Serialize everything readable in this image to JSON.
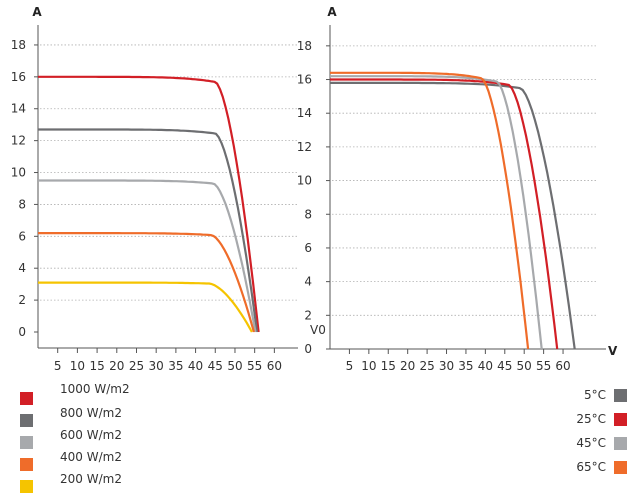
{
  "chart_data": [
    {
      "type": "line",
      "title": "",
      "xlabel": "",
      "ylabel": "A",
      "xlim": [
        0,
        66
      ],
      "ylim": [
        0,
        19
      ],
      "x_ticks": [
        "5",
        "10",
        "15",
        "20",
        "25",
        "30",
        "35",
        "40",
        "45",
        "50",
        "55",
        "60"
      ],
      "y_ticks": [
        "0",
        "2",
        "4",
        "6",
        "8",
        "10",
        "12",
        "14",
        "16",
        "18"
      ],
      "grid": "horizontal dotted",
      "legend": "bottom-left",
      "series": [
        {
          "name": "1000 W/m2",
          "color": "#d21f26",
          "isc": 16.0,
          "voc": 56.0,
          "knee_v": 45.0
        },
        {
          "name": "800 W/m2",
          "color": "#6d6e71",
          "isc": 12.7,
          "voc": 55.6,
          "knee_v": 45.0
        },
        {
          "name": "600 W/m2",
          "color": "#a7a9ac",
          "isc": 9.5,
          "voc": 55.2,
          "knee_v": 44.5
        },
        {
          "name": "400 W/m2",
          "color": "#ef6c2a",
          "isc": 6.2,
          "voc": 54.8,
          "knee_v": 44.0
        },
        {
          "name": "200 W/m2",
          "color": "#f5c400",
          "isc": 3.1,
          "voc": 54.3,
          "knee_v": 43.5
        }
      ]
    },
    {
      "type": "line",
      "title": "",
      "xlabel": "V",
      "ylabel": "A",
      "xlim": [
        0,
        69
      ],
      "ylim": [
        0,
        19
      ],
      "x_ticks": [
        "5",
        "10",
        "15",
        "20",
        "25",
        "30",
        "35",
        "40",
        "45",
        "50",
        "55",
        "60"
      ],
      "y_ticks": [
        "0",
        "2",
        "4",
        "6",
        "8",
        "10",
        "12",
        "14",
        "16",
        "18"
      ],
      "origin_label": "V0",
      "grid": "horizontal dotted",
      "legend": "bottom-right",
      "series": [
        {
          "name": "5°C",
          "color": "#6d6e71",
          "isc": 15.8,
          "voc": 63.0,
          "knee_v": 49.0
        },
        {
          "name": "25°C",
          "color": "#d21f26",
          "isc": 16.0,
          "voc": 58.5,
          "knee_v": 46.0
        },
        {
          "name": "45°C",
          "color": "#a7a9ac",
          "isc": 16.2,
          "voc": 54.5,
          "knee_v": 43.0
        },
        {
          "name": "65°C",
          "color": "#ef6c2a",
          "isc": 16.4,
          "voc": 51.0,
          "knee_v": 39.0
        }
      ]
    }
  ]
}
